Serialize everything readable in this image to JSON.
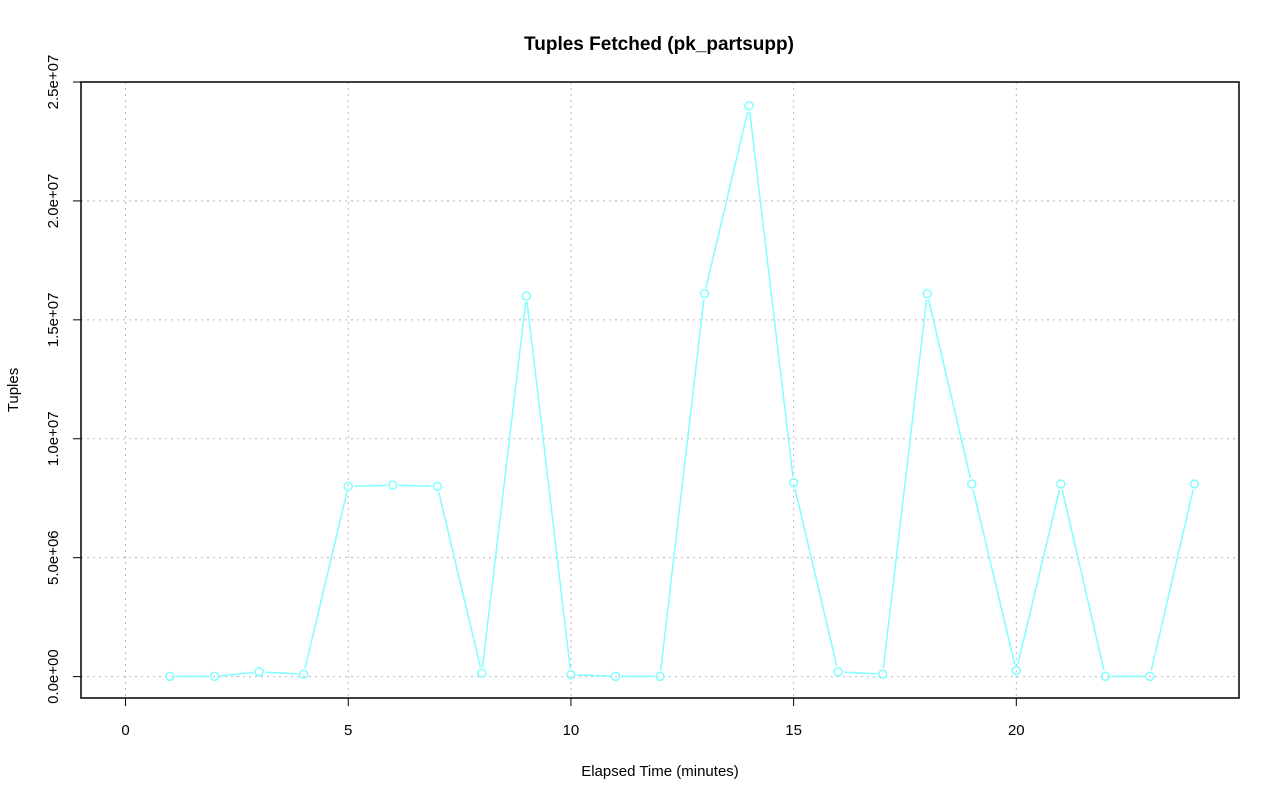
{
  "chart_data": {
    "type": "line",
    "title": "Tuples Fetched (pk_partsupp)",
    "xlabel": "Elapsed Time (minutes)",
    "ylabel": "Tuples",
    "xlim": [
      -1,
      25
    ],
    "ylim": [
      -900000,
      25000000
    ],
    "x_ticks": [
      0,
      5,
      10,
      15,
      20
    ],
    "x_tick_labels": [
      "0",
      "5",
      "10",
      "15",
      "20"
    ],
    "y_ticks": [
      0,
      5000000,
      10000000,
      15000000,
      20000000,
      25000000
    ],
    "y_tick_labels": [
      "0.0e+00",
      "5.0e+06",
      "1.0e+07",
      "1.5e+07",
      "2.0e+07",
      "2.5e+07"
    ],
    "grid": true,
    "series": [
      {
        "color": "#7fffff",
        "marker": "open-circle",
        "x": [
          1,
          2,
          3,
          4,
          5,
          6,
          7,
          8,
          9,
          10,
          11,
          12,
          13,
          14,
          15,
          16,
          17,
          18,
          19,
          20,
          21,
          22,
          23,
          24
        ],
        "y": [
          10000,
          10000,
          200000,
          100000,
          8000000,
          8050000,
          8000000,
          150000,
          16000000,
          80000,
          10000,
          10000,
          16100000,
          24000000,
          8150000,
          200000,
          100000,
          16100000,
          8100000,
          250000,
          8100000,
          10000,
          10000,
          8100000
        ]
      }
    ]
  }
}
